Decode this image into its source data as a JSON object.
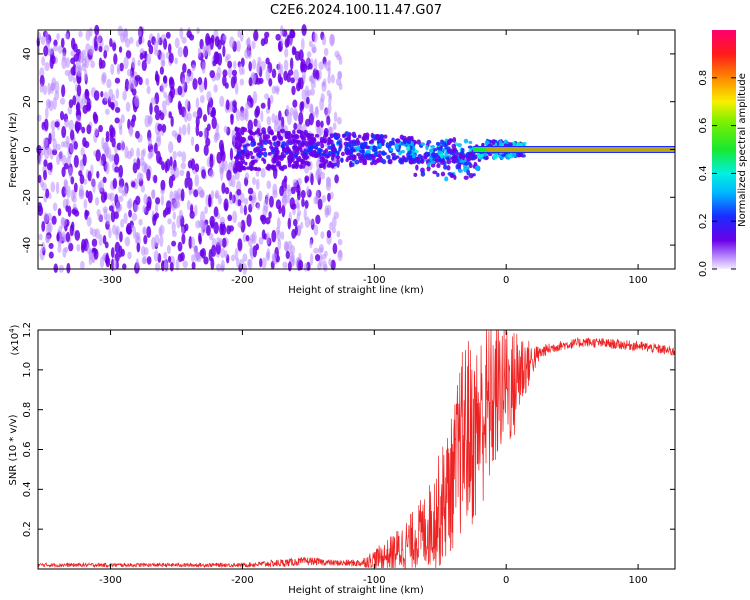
{
  "title": "C2E6.2024.100.11.47.G07",
  "colors": {
    "signal_line": "#ee2222",
    "background_scatter": "#6a00e8",
    "frame": "#000000"
  },
  "chart_data": [
    {
      "type": "heatmap",
      "title": "",
      "xlabel": "Height of straight line (km)",
      "ylabel": "Frequency (Hz)",
      "xlim": [
        -355,
        128
      ],
      "ylim": [
        -50,
        50
      ],
      "xticks": [
        -300,
        -200,
        -100,
        0,
        100
      ],
      "yticks": [
        -40,
        -20,
        0,
        20,
        40
      ],
      "colorbar": {
        "label": "Normalized spectral amplitude",
        "range": [
          0.0,
          1.0
        ],
        "ticks": [
          "0.0",
          "0.2",
          "0.4",
          "0.6",
          "0.8"
        ],
        "colormap": "rainbow"
      },
      "features": {
        "noise_region_x": [
          -355,
          -125
        ],
        "signal_band_x": [
          -205,
          128
        ],
        "steady_line_x": [
          15,
          128
        ],
        "steady_line_freq": 0,
        "steady_line_level": 0.85
      }
    },
    {
      "type": "line",
      "title": "",
      "xlabel": "Height of straight line (km)",
      "ylabel": "SNR (10 * v/v)",
      "yscale_label": "(x10",
      "yscale_exp": "4",
      "yscale_suffix": ")",
      "xlim": [
        -355,
        128
      ],
      "ylim": [
        0,
        1.2
      ],
      "xticks": [
        -300,
        -200,
        -100,
        0,
        100
      ],
      "yticks": [
        "0.2",
        "0.4",
        "0.6",
        "0.8",
        "1.0",
        "1.2"
      ],
      "series": [
        {
          "x": [
            -355,
            -300,
            -250,
            -200,
            -170,
            -150,
            -130,
            -110,
            -100,
            -90,
            -80,
            -70,
            -60,
            -50,
            -40,
            -35,
            -30,
            -25,
            -20,
            -15,
            -10,
            -5,
            0,
            5,
            10,
            15,
            20,
            25,
            30,
            40,
            60,
            80,
            100,
            120,
            128
          ],
          "y": [
            0.02,
            0.02,
            0.02,
            0.02,
            0.03,
            0.04,
            0.03,
            0.03,
            0.05,
            0.07,
            0.1,
            0.15,
            0.2,
            0.3,
            0.45,
            0.6,
            0.7,
            0.65,
            0.75,
            0.8,
            0.85,
            0.9,
            0.95,
            0.9,
            1.0,
            1.02,
            1.05,
            1.08,
            1.1,
            1.12,
            1.14,
            1.13,
            1.12,
            1.1,
            1.09
          ],
          "noise": [
            0.01,
            0.01,
            0.01,
            0.01,
            0.02,
            0.02,
            0.015,
            0.02,
            0.05,
            0.08,
            0.12,
            0.15,
            0.2,
            0.3,
            0.35,
            0.45,
            0.5,
            0.45,
            0.45,
            0.45,
            0.4,
            0.35,
            0.3,
            0.3,
            0.25,
            0.15,
            0.08,
            0.04,
            0.03,
            0.025,
            0.025,
            0.025,
            0.025,
            0.025,
            0.025
          ]
        }
      ]
    }
  ]
}
